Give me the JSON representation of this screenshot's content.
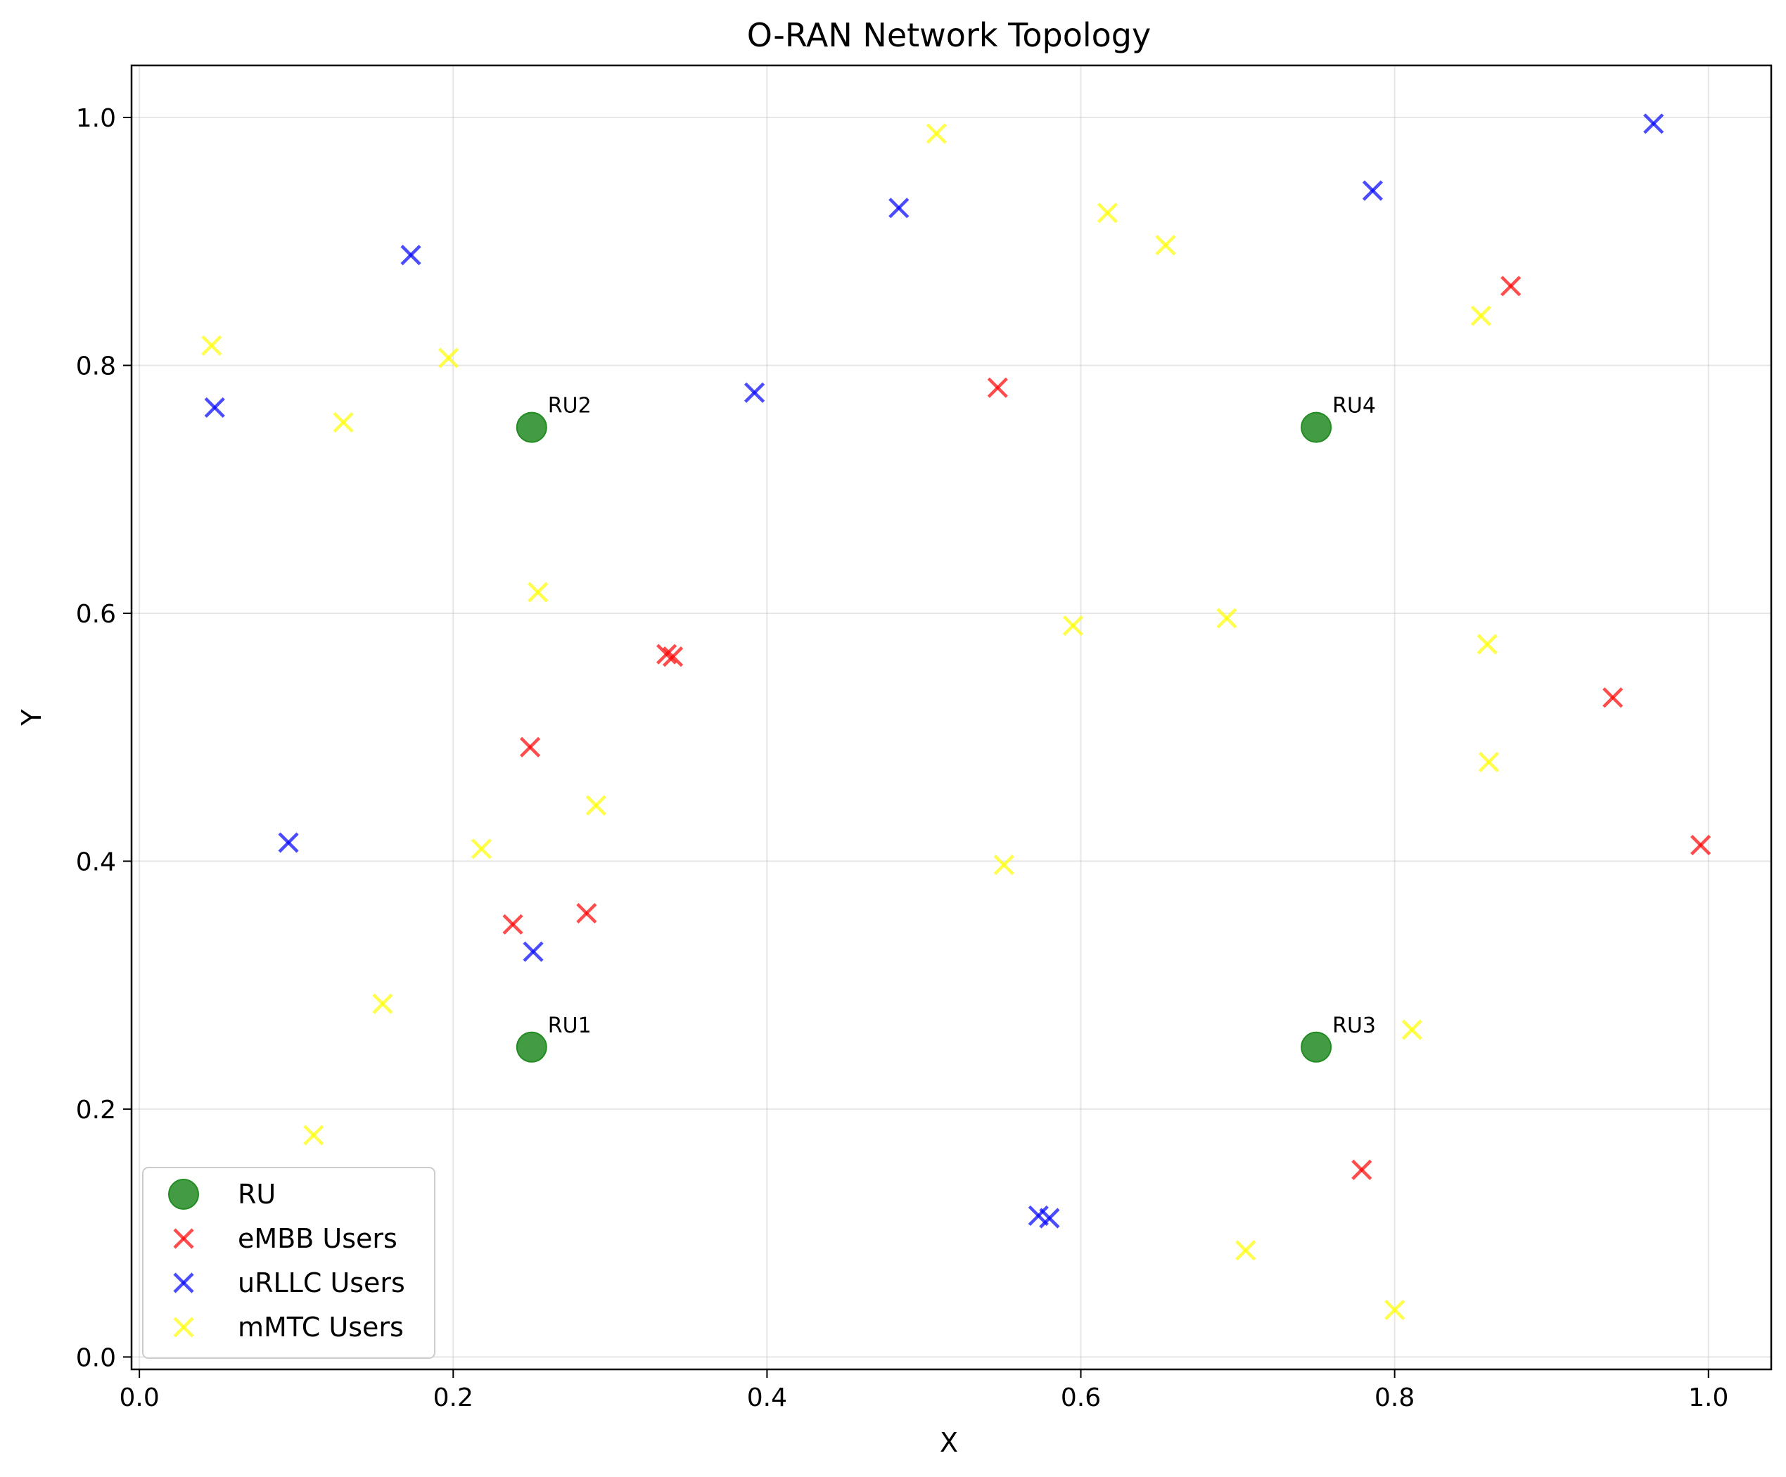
{
  "chart_data": {
    "type": "scatter",
    "title": "O-RAN Network Topology",
    "xlabel": "X",
    "ylabel": "Y",
    "xlim": [
      -0.005,
      1.04
    ],
    "ylim": [
      -0.01,
      1.042
    ],
    "x_ticks": [
      "0.0",
      "0.2",
      "0.4",
      "0.6",
      "0.8",
      "1.0"
    ],
    "y_ticks": [
      "0.0",
      "0.2",
      "0.4",
      "0.6",
      "0.8",
      "1.0"
    ],
    "grid": true,
    "legend_position": "lower-left",
    "series": [
      {
        "name": "RU",
        "marker": "circle",
        "color": "#228B22",
        "points": [
          {
            "x": 0.25,
            "y": 0.25,
            "label": "RU1"
          },
          {
            "x": 0.25,
            "y": 0.75,
            "label": "RU2"
          },
          {
            "x": 0.75,
            "y": 0.25,
            "label": "RU3"
          },
          {
            "x": 0.75,
            "y": 0.75,
            "label": "RU4"
          }
        ]
      },
      {
        "name": "eMBB Users",
        "marker": "x",
        "color": "#FF0000",
        "points": [
          {
            "x": 0.874,
            "y": 0.864
          },
          {
            "x": 0.547,
            "y": 0.782
          },
          {
            "x": 0.336,
            "y": 0.567
          },
          {
            "x": 0.34,
            "y": 0.565
          },
          {
            "x": 0.249,
            "y": 0.492
          },
          {
            "x": 0.939,
            "y": 0.532
          },
          {
            "x": 0.995,
            "y": 0.413
          },
          {
            "x": 0.285,
            "y": 0.358
          },
          {
            "x": 0.238,
            "y": 0.349
          },
          {
            "x": 0.779,
            "y": 0.151
          }
        ]
      },
      {
        "name": "uRLLC Users",
        "marker": "x",
        "color": "#0000FF",
        "points": [
          {
            "x": 0.965,
            "y": 0.995
          },
          {
            "x": 0.786,
            "y": 0.941
          },
          {
            "x": 0.484,
            "y": 0.927
          },
          {
            "x": 0.173,
            "y": 0.889
          },
          {
            "x": 0.392,
            "y": 0.778
          },
          {
            "x": 0.048,
            "y": 0.766
          },
          {
            "x": 0.095,
            "y": 0.415
          },
          {
            "x": 0.251,
            "y": 0.327
          },
          {
            "x": 0.573,
            "y": 0.114
          },
          {
            "x": 0.58,
            "y": 0.112
          }
        ]
      },
      {
        "name": "mMTC Users",
        "marker": "x",
        "color": "#FFFF00",
        "points": [
          {
            "x": 0.508,
            "y": 0.987
          },
          {
            "x": 0.617,
            "y": 0.923
          },
          {
            "x": 0.654,
            "y": 0.897
          },
          {
            "x": 0.855,
            "y": 0.84
          },
          {
            "x": 0.046,
            "y": 0.816
          },
          {
            "x": 0.197,
            "y": 0.806
          },
          {
            "x": 0.13,
            "y": 0.754
          },
          {
            "x": 0.254,
            "y": 0.617
          },
          {
            "x": 0.595,
            "y": 0.59
          },
          {
            "x": 0.693,
            "y": 0.596
          },
          {
            "x": 0.859,
            "y": 0.575
          },
          {
            "x": 0.86,
            "y": 0.48
          },
          {
            "x": 0.291,
            "y": 0.445
          },
          {
            "x": 0.218,
            "y": 0.41
          },
          {
            "x": 0.551,
            "y": 0.397
          },
          {
            "x": 0.155,
            "y": 0.285
          },
          {
            "x": 0.811,
            "y": 0.264
          },
          {
            "x": 0.111,
            "y": 0.179
          },
          {
            "x": 0.705,
            "y": 0.086
          },
          {
            "x": 0.8,
            "y": 0.038
          }
        ]
      }
    ]
  }
}
